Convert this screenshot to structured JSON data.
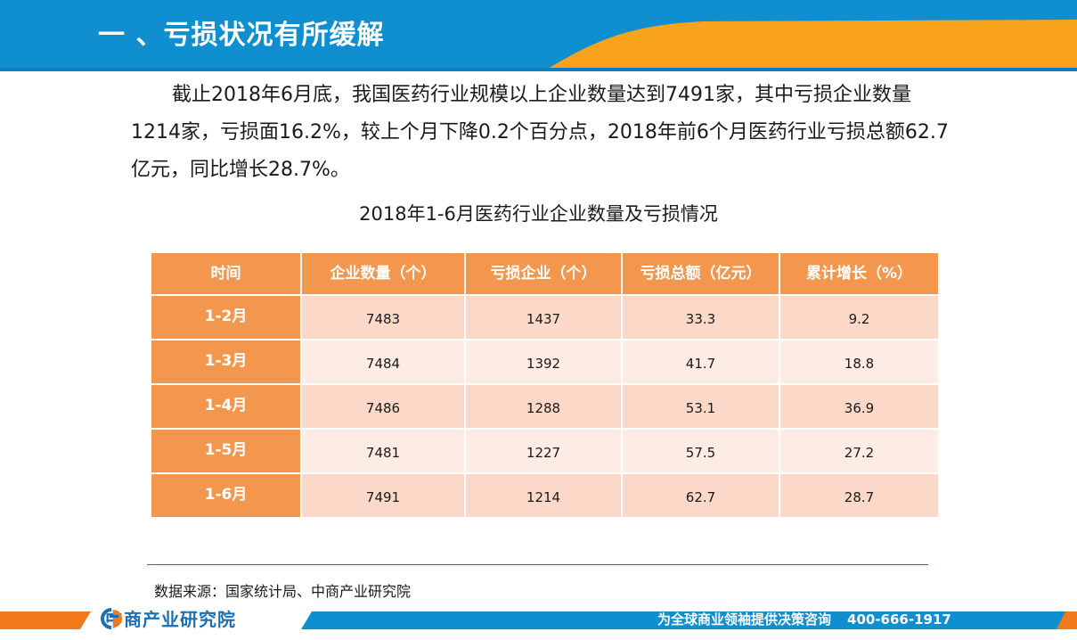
{
  "header": {
    "title": "一 、亏损状况有所缓解",
    "colors": {
      "blue": "#0f8fd0",
      "orange": "#f9a21b"
    }
  },
  "paragraph": "截止2018年6月底，我国医药行业规模以上企业数量达到7491家，其中亏损企业数量1214家，亏损面16.2%，较上个月下降0.2个百分点，2018年前6个月医药行业亏损总额62.7亿元，同比增长28.7%。",
  "table": {
    "title": "2018年1-6月医药行业企业数量及亏损情况",
    "columns": [
      "时间",
      "企业数量（个）",
      "亏损企业（个）",
      "亏损总额（亿元）",
      "累计增长（%）"
    ],
    "rows": [
      [
        "1-2月",
        "7483",
        "1437",
        "33.3",
        "9.2"
      ],
      [
        "1-3月",
        "7484",
        "1392",
        "41.7",
        "18.8"
      ],
      [
        "1-4月",
        "7486",
        "1288",
        "53.1",
        "36.9"
      ],
      [
        "1-5月",
        "7481",
        "1227",
        "57.5",
        "27.2"
      ],
      [
        "1-6月",
        "7491",
        "1214",
        "62.7",
        "28.7"
      ]
    ],
    "colors": {
      "header": "#f4974e",
      "row_dark": "#fbd8c7",
      "row_light": "#fdece4"
    }
  },
  "source": "数据来源：国家统计局、中商产业研究院",
  "footer": {
    "logo_text": "中商产业研究院",
    "logo_icon": "zhongshang-logo-icon",
    "slogan": "为全球商业领袖提供决策咨询",
    "phone": "400-666-1917",
    "colors": {
      "blue": "#0f8fd0",
      "orange": "#f07a1a"
    }
  }
}
